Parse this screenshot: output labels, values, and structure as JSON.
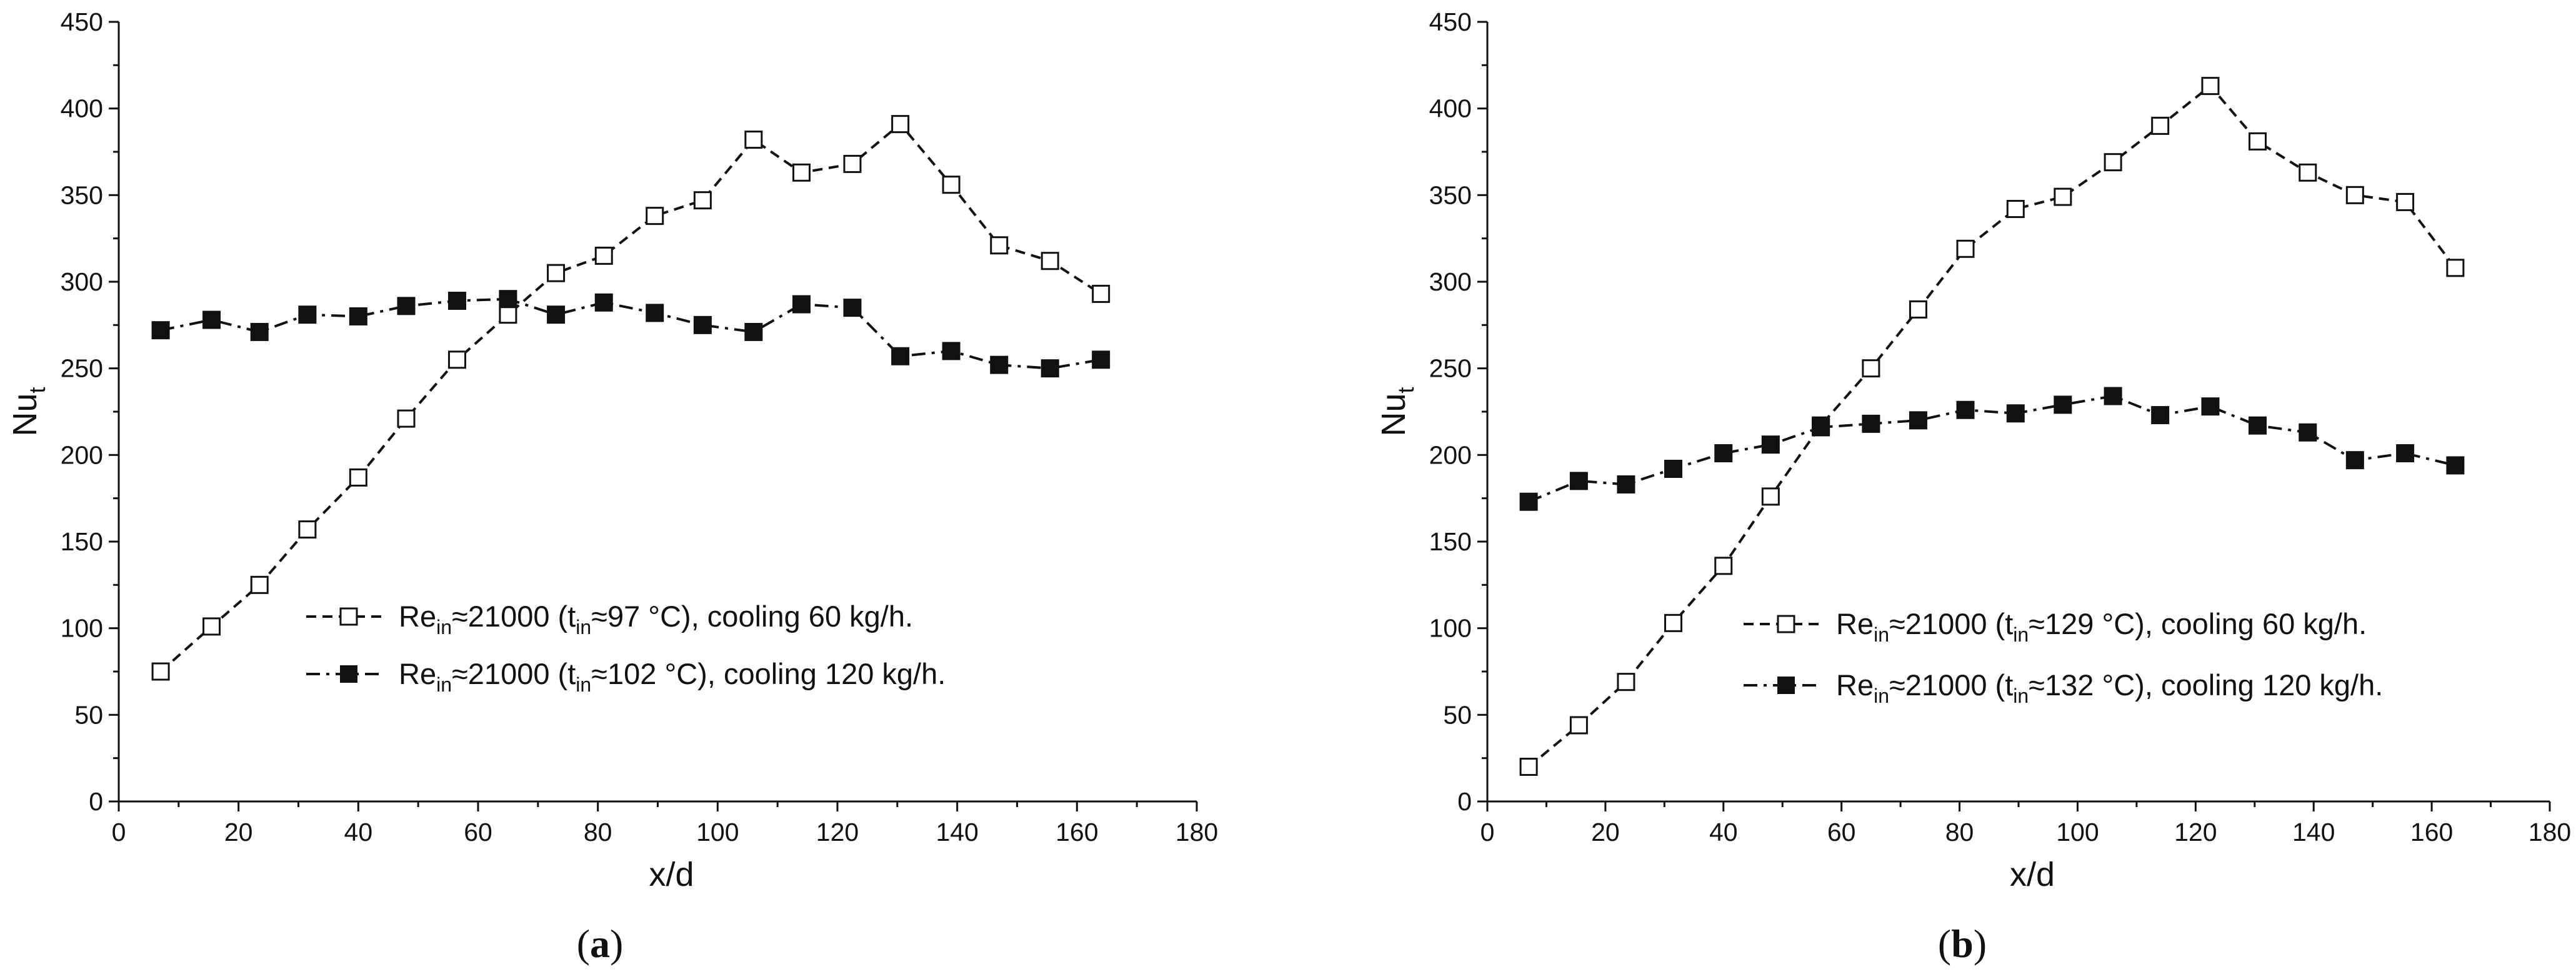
{
  "chart_data": [
    {
      "type": "line",
      "panel_label": "a",
      "xlabel": "x/d",
      "ylabel": {
        "base": "Nu",
        "sub": "t"
      },
      "xlim": [
        0,
        180
      ],
      "ylim": [
        0,
        450
      ],
      "x_ticks": [
        "0",
        "20",
        "40",
        "60",
        "80",
        "100",
        "120",
        "140",
        "160",
        "180"
      ],
      "y_ticks": [
        "0",
        "50",
        "100",
        "150",
        "200",
        "250",
        "300",
        "350",
        "400",
        "450"
      ],
      "grid": false,
      "legend_position": "lower-right",
      "x": [
        7,
        15.5,
        23.5,
        31.5,
        40,
        48,
        56.5,
        65,
        73,
        81,
        89.5,
        97.5,
        106,
        114,
        122.5,
        130.5,
        139,
        147,
        155.5,
        164
      ],
      "series": [
        {
          "name": "Re≈21000 (t≈97 °C), cooling 60 kg/h.",
          "legend": {
            "re": "Re",
            "re_sub": "in",
            "approx1": "≈21000 (",
            "t": "t",
            "t_sub": "in",
            "rest": "≈97 °C), cooling 60 kg/h."
          },
          "marker": "open-square",
          "line_style": "dashed",
          "values": [
            75,
            101,
            125,
            157,
            187,
            221,
            255,
            281,
            305,
            315,
            338,
            347,
            382,
            363,
            368,
            391,
            356,
            321,
            312,
            293
          ]
        },
        {
          "name": "Re≈21000 (t≈102 °C), cooling 120 kg/h.",
          "legend": {
            "re": "Re",
            "re_sub": "in",
            "approx1": "≈21000 (",
            "t": "t",
            "t_sub": "in",
            "rest": "≈102 °C), cooling 120 kg/h."
          },
          "marker": "filled-square",
          "line_style": "dash-dot",
          "values": [
            272,
            278,
            271,
            281,
            280,
            286,
            289,
            290,
            281,
            288,
            282,
            275,
            271,
            287,
            285,
            257,
            260,
            252,
            250,
            255
          ]
        }
      ]
    },
    {
      "type": "line",
      "panel_label": "b",
      "xlabel": "x/d",
      "ylabel": {
        "base": "Nu",
        "sub": "t"
      },
      "xlim": [
        0,
        180
      ],
      "ylim": [
        0,
        450
      ],
      "x_ticks": [
        "0",
        "20",
        "40",
        "60",
        "80",
        "100",
        "120",
        "140",
        "160",
        "180"
      ],
      "y_ticks": [
        "0",
        "50",
        "100",
        "150",
        "200",
        "250",
        "300",
        "350",
        "400",
        "450"
      ],
      "grid": false,
      "legend_position": "lower-right",
      "x": [
        7,
        15.5,
        23.5,
        31.5,
        40,
        48,
        56.5,
        65,
        73,
        81,
        89.5,
        97.5,
        106,
        114,
        122.5,
        130.5,
        139,
        147,
        155.5,
        164
      ],
      "series": [
        {
          "name": "Re≈21000 (t≈129 °C), cooling 60 kg/h.",
          "legend": {
            "re": "Re",
            "re_sub": "in",
            "approx1": "≈21000 (",
            "t": "t",
            "t_sub": "in",
            "rest": "≈129 °C), cooling 60 kg/h."
          },
          "marker": "open-square",
          "line_style": "dashed",
          "values": [
            20,
            44,
            69,
            103,
            136,
            176,
            217,
            250,
            284,
            319,
            342,
            349,
            369,
            390,
            413,
            381,
            363,
            350,
            346,
            308
          ]
        },
        {
          "name": "Re≈21000 (t≈132 °C), cooling 120 kg/h.",
          "legend": {
            "re": "Re",
            "re_sub": "in",
            "approx1": "≈21000 (",
            "t": "t",
            "t_sub": "in",
            "rest": "≈132 °C), cooling 120 kg/h."
          },
          "marker": "filled-square",
          "line_style": "dash-dot",
          "values": [
            173,
            185,
            183,
            192,
            201,
            206,
            216,
            218,
            220,
            226,
            224,
            229,
            234,
            223,
            228,
            217,
            213,
            197,
            201,
            194
          ]
        }
      ]
    }
  ]
}
